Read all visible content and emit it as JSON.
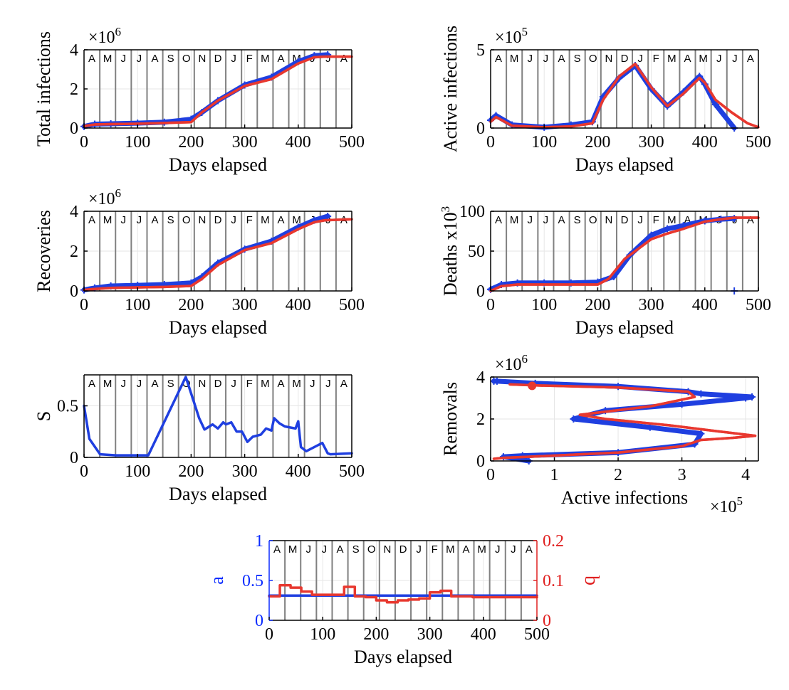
{
  "months": [
    "A",
    "M",
    "J",
    "J",
    "A",
    "S",
    "O",
    "N",
    "D",
    "J",
    "F",
    "M",
    "A",
    "M",
    "J",
    "J",
    "A"
  ],
  "colors": {
    "blue": "#1f3fe0",
    "red": "#e8382f",
    "axis": "#000000",
    "month_line": "#808080",
    "grid": "#e6e6e6",
    "right_axis": "#e02020",
    "left_axis": "#0a2bff"
  },
  "chart_data": [
    {
      "id": "total",
      "type": "line",
      "ylabel": "Total  infections",
      "xlabel": "Days elapsed",
      "exponent": "6",
      "xlim": [
        0,
        500
      ],
      "ylim": [
        0,
        4
      ],
      "xticks": [
        0,
        100,
        200,
        300,
        400,
        500
      ],
      "yticks": [
        0,
        2,
        4
      ],
      "series": [
        {
          "name": "data",
          "color": "blue",
          "marker": "+",
          "x": [
            0,
            20,
            50,
            100,
            150,
            200,
            220,
            250,
            300,
            350,
            400,
            430,
            455
          ],
          "y": [
            0.08,
            0.2,
            0.22,
            0.25,
            0.3,
            0.45,
            0.8,
            1.4,
            2.2,
            2.6,
            3.4,
            3.7,
            3.75
          ]
        },
        {
          "name": "model",
          "color": "red",
          "x": [
            0,
            20,
            50,
            100,
            150,
            200,
            220,
            250,
            300,
            350,
            400,
            430,
            450,
            500
          ],
          "y": [
            0.1,
            0.18,
            0.2,
            0.22,
            0.26,
            0.3,
            0.8,
            1.4,
            2.15,
            2.5,
            3.3,
            3.62,
            3.65,
            3.65
          ]
        }
      ]
    },
    {
      "id": "active",
      "type": "line",
      "ylabel": "Active  infections",
      "xlabel": "Days elapsed",
      "exponent": "5",
      "xlim": [
        0,
        500
      ],
      "ylim": [
        0,
        5
      ],
      "xticks": [
        0,
        100,
        200,
        300,
        400,
        500
      ],
      "yticks": [
        0,
        5
      ],
      "series": [
        {
          "name": "data",
          "color": "blue",
          "marker": "+",
          "x": [
            0,
            10,
            40,
            100,
            150,
            190,
            210,
            240,
            270,
            300,
            330,
            360,
            390,
            400,
            420,
            455
          ],
          "y": [
            0.5,
            0.8,
            0.2,
            0.05,
            0.2,
            0.4,
            2.0,
            3.2,
            4.0,
            2.5,
            1.4,
            2.3,
            3.3,
            2.8,
            1.5,
            0.0
          ]
        },
        {
          "name": "model",
          "color": "red",
          "x": [
            0,
            10,
            40,
            100,
            150,
            190,
            210,
            240,
            270,
            300,
            330,
            360,
            390,
            400,
            420,
            450,
            480,
            500
          ],
          "y": [
            0.4,
            0.7,
            0.15,
            0.05,
            0.1,
            0.3,
            1.8,
            3.3,
            4.1,
            2.6,
            1.4,
            2.2,
            3.2,
            2.9,
            1.8,
            1.0,
            0.3,
            0.05
          ]
        }
      ]
    },
    {
      "id": "recoveries",
      "type": "line",
      "ylabel": "Recoveries",
      "xlabel": "Days elapsed",
      "exponent": "6",
      "xlim": [
        0,
        500
      ],
      "ylim": [
        0,
        4
      ],
      "xticks": [
        0,
        100,
        200,
        300,
        400,
        500
      ],
      "yticks": [
        0,
        2,
        4
      ],
      "series": [
        {
          "name": "data",
          "color": "blue",
          "marker": "+",
          "x": [
            0,
            20,
            50,
            100,
            150,
            200,
            220,
            250,
            300,
            350,
            400,
            430,
            455
          ],
          "y": [
            0.05,
            0.15,
            0.25,
            0.28,
            0.32,
            0.4,
            0.7,
            1.4,
            2.1,
            2.5,
            3.2,
            3.55,
            3.75
          ]
        },
        {
          "name": "model",
          "color": "red",
          "x": [
            0,
            20,
            50,
            100,
            150,
            200,
            220,
            250,
            300,
            350,
            400,
            430,
            450,
            500
          ],
          "y": [
            0.05,
            0.1,
            0.15,
            0.18,
            0.2,
            0.25,
            0.6,
            1.3,
            2.05,
            2.4,
            3.1,
            3.45,
            3.55,
            3.6
          ]
        }
      ]
    },
    {
      "id": "deaths",
      "type": "line",
      "ylabel": "Deaths x10",
      "ylabel_sup": "3",
      "xlabel": "Days elapsed",
      "xlim": [
        0,
        500
      ],
      "ylim": [
        0,
        100
      ],
      "xticks": [
        0,
        100,
        200,
        300,
        400,
        500
      ],
      "yticks": [
        0,
        50,
        100
      ],
      "series": [
        {
          "name": "data",
          "color": "blue",
          "marker": "+",
          "x": [
            0,
            20,
            50,
            100,
            150,
            200,
            230,
            260,
            300,
            330,
            360,
            400,
            430,
            455
          ],
          "y": [
            2,
            8,
            10,
            10,
            10,
            11,
            18,
            45,
            70,
            78,
            82,
            88,
            90,
            91
          ]
        },
        {
          "name": "model",
          "color": "red",
          "x": [
            0,
            20,
            50,
            100,
            150,
            200,
            220,
            250,
            300,
            330,
            360,
            400,
            430,
            455,
            500
          ],
          "y": [
            0,
            6,
            8,
            8,
            8,
            8,
            15,
            40,
            65,
            72,
            78,
            87,
            90,
            92,
            92
          ]
        }
      ],
      "outlier": {
        "x": 455,
        "y": 0
      }
    },
    {
      "id": "S",
      "type": "line",
      "ylabel": "S",
      "xlabel": "Days elapsed",
      "xlim": [
        0,
        500
      ],
      "ylim": [
        0,
        0.8
      ],
      "xticks": [
        0,
        100,
        200,
        300,
        400,
        500
      ],
      "yticks": [
        0,
        0.5
      ],
      "series": [
        {
          "name": "S",
          "color": "blue",
          "x": [
            0,
            10,
            30,
            60,
            120,
            190,
            200,
            215,
            225,
            240,
            250,
            260,
            265,
            275,
            285,
            295,
            305,
            315,
            330,
            340,
            350,
            355,
            365,
            375,
            395,
            400,
            405,
            415,
            430,
            445,
            455,
            460,
            500
          ],
          "y": [
            0.5,
            0.18,
            0.03,
            0.02,
            0.02,
            0.78,
            0.62,
            0.38,
            0.27,
            0.32,
            0.28,
            0.34,
            0.32,
            0.34,
            0.25,
            0.25,
            0.15,
            0.2,
            0.22,
            0.28,
            0.26,
            0.38,
            0.33,
            0.3,
            0.28,
            0.35,
            0.1,
            0.06,
            0.1,
            0.14,
            0.04,
            0.03,
            0.04
          ]
        }
      ]
    },
    {
      "id": "phase",
      "type": "line",
      "ylabel": "Removals",
      "xlabel": "Active infections",
      "exponent_y": "6",
      "exponent_x": "5",
      "xlim": [
        0,
        4.2
      ],
      "ylim": [
        0,
        4
      ],
      "xticks": [
        0,
        1,
        2,
        3,
        4
      ],
      "yticks": [
        0,
        2,
        4
      ],
      "series": [
        {
          "name": "data",
          "color": "blue",
          "marker": "+",
          "x": [
            0.6,
            0.2,
            0.5,
            2.0,
            3.2,
            3.3,
            2.5,
            1.3,
            1.8,
            3.0,
            4.0,
            4.1,
            3.3,
            3.1,
            2.0,
            0.7,
            0.1,
            0.05
          ],
          "y": [
            0.0,
            0.2,
            0.25,
            0.4,
            0.8,
            1.3,
            1.6,
            2.0,
            2.4,
            2.7,
            3.0,
            3.05,
            3.2,
            3.3,
            3.55,
            3.7,
            3.8,
            3.8
          ]
        },
        {
          "name": "model",
          "color": "red",
          "x": [
            0.05,
            0.2,
            0.6,
            2.0,
            3.0,
            3.3,
            3.8,
            4.15,
            3.6,
            2.8,
            1.8,
            1.4,
            2.5,
            3.2,
            3.1,
            2.0,
            0.7,
            0.3
          ],
          "y": [
            0.1,
            0.15,
            0.2,
            0.4,
            0.7,
            1.0,
            1.1,
            1.2,
            1.4,
            1.7,
            2.0,
            2.2,
            2.6,
            3.05,
            3.3,
            3.5,
            3.6,
            3.65
          ]
        }
      ],
      "dot": {
        "x": 0.65,
        "y": 3.58
      }
    },
    {
      "id": "ab",
      "type": "line",
      "ylabel": "a",
      "ylabel_right": "b",
      "xlabel": "Days elapsed",
      "xlim": [
        0,
        500
      ],
      "ylim": [
        0,
        1
      ],
      "ylim_right": [
        0,
        0.2
      ],
      "xticks": [
        0,
        100,
        200,
        300,
        400,
        500
      ],
      "yticks": [
        0,
        0.5,
        1
      ],
      "yticks_right": [
        0,
        0.1,
        0.2
      ],
      "yticklabels": [
        "0",
        "0.5",
        "1"
      ],
      "yticklabels_right": [
        "0",
        "0.1",
        "0.2"
      ],
      "series": [
        {
          "name": "a",
          "color": "blue",
          "axis": "left",
          "x": [
            0,
            500
          ],
          "y": [
            0.31,
            0.31
          ]
        },
        {
          "name": "b",
          "color": "red",
          "axis": "right",
          "step": true,
          "x": [
            0,
            20,
            40,
            60,
            80,
            100,
            120,
            140,
            160,
            180,
            200,
            220,
            240,
            260,
            280,
            300,
            320,
            340,
            360,
            380,
            400,
            420,
            440,
            460,
            480,
            500
          ],
          "y": [
            0.06,
            0.088,
            0.082,
            0.072,
            0.064,
            0.064,
            0.064,
            0.084,
            0.06,
            0.058,
            0.05,
            0.045,
            0.05,
            0.052,
            0.055,
            0.07,
            0.074,
            0.06,
            0.06,
            0.058,
            0.058,
            0.058,
            0.058,
            0.058,
            0.058,
            0.058
          ]
        }
      ]
    }
  ]
}
